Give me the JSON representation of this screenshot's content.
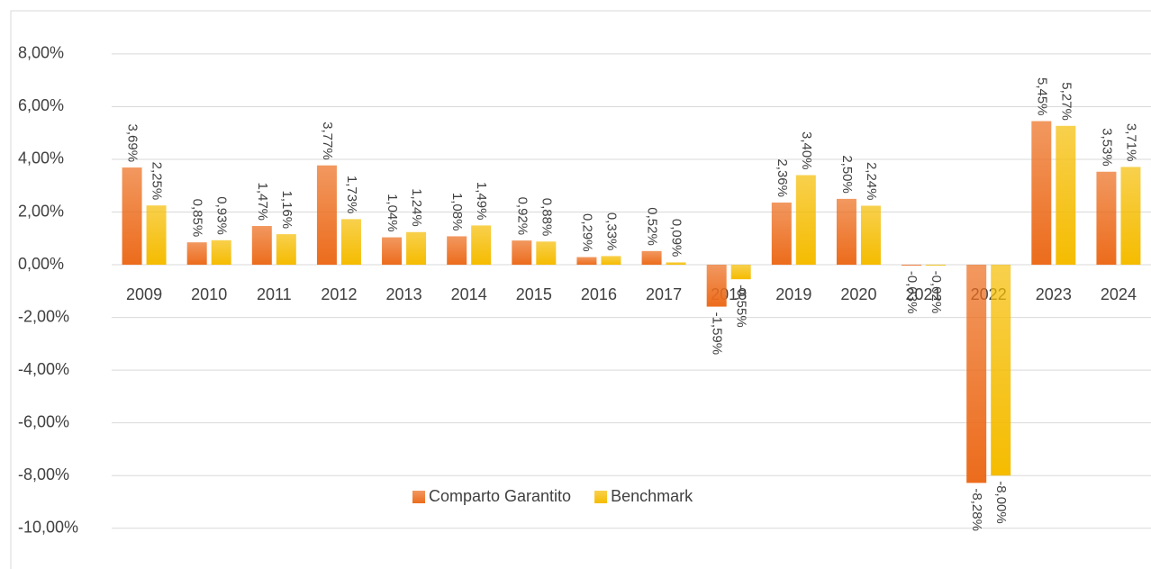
{
  "chart_data": {
    "type": "bar",
    "categories": [
      "2009",
      "2010",
      "2011",
      "2012",
      "2013",
      "2014",
      "2015",
      "2016",
      "2017",
      "2018",
      "2019",
      "2020",
      "2021",
      "2022",
      "2023",
      "2024"
    ],
    "series": [
      {
        "name": "Comparto Garantito",
        "color": "#ec6c1c",
        "values": [
          3.69,
          0.85,
          1.47,
          3.77,
          1.04,
          1.08,
          0.92,
          0.29,
          0.52,
          -1.59,
          2.36,
          2.5,
          -0.03,
          -8.28,
          5.45,
          3.53
        ],
        "value_labels": [
          "3,69%",
          "0,85%",
          "1,47%",
          "3,77%",
          "1,04%",
          "1,08%",
          "0,92%",
          "0,29%",
          "0,52%",
          "-1,59%",
          "2,36%",
          "2,50%",
          "-0,03%",
          "-8,28%",
          "5,45%",
          "3,53%"
        ]
      },
      {
        "name": "Benchmark",
        "color": "#f5bc00",
        "values": [
          2.25,
          0.93,
          1.16,
          1.73,
          1.24,
          1.49,
          0.88,
          0.33,
          0.09,
          -0.55,
          3.4,
          2.24,
          -0.02,
          -8.0,
          5.27,
          3.71
        ],
        "value_labels": [
          "2,25%",
          "0,93%",
          "1,16%",
          "1,73%",
          "1,24%",
          "1,49%",
          "0,88%",
          "0,33%",
          "0,09%",
          "-0,55%",
          "3,40%",
          "2,24%",
          "-0,02%",
          "-8,00%",
          "5,27%",
          "3,71%"
        ]
      }
    ],
    "ylim": [
      -11,
      9.5
    ],
    "yticks": [
      {
        "value": -10,
        "label": "-10,00%"
      },
      {
        "value": -8,
        "label": "-8,00%"
      },
      {
        "value": -6,
        "label": "-6,00%"
      },
      {
        "value": -4,
        "label": "-4,00%"
      },
      {
        "value": -2,
        "label": "-2,00%"
      },
      {
        "value": 0,
        "label": "0,00%"
      },
      {
        "value": 2,
        "label": "2,00%"
      },
      {
        "value": 4,
        "label": "4,00%"
      },
      {
        "value": 6,
        "label": "6,00%"
      },
      {
        "value": 8,
        "label": "8,00%"
      }
    ],
    "grid": true,
    "legend": "bottom"
  }
}
